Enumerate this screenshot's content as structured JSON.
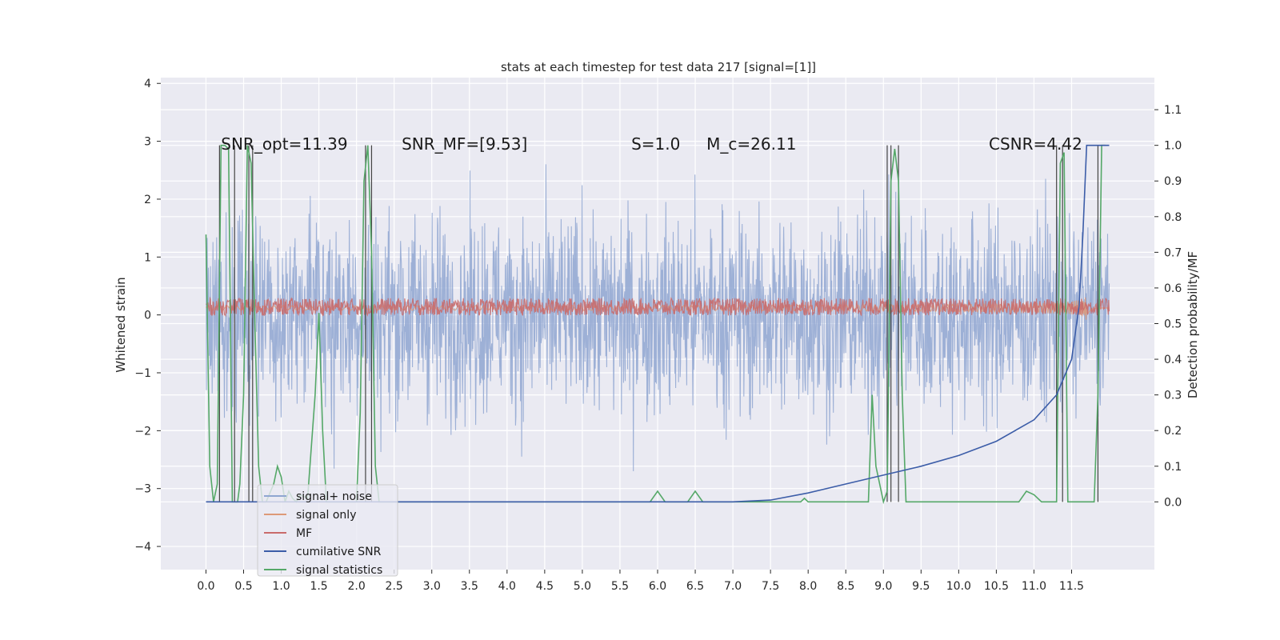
{
  "chart_data": {
    "type": "line",
    "title": "stats at each timestep for test data 217 [signal=[1]]",
    "xlabel": "",
    "ylabel": "Whitened strain",
    "ylabel_right": "Detection probability/MF",
    "xlim": [
      -0.6,
      12.6
    ],
    "ylim": [
      -4.4,
      4.1
    ],
    "ylim_right": [
      -0.19,
      1.19
    ],
    "x_ticks": [
      "0.0",
      "0.5",
      "1.0",
      "1.5",
      "2.0",
      "2.5",
      "3.0",
      "3.5",
      "4.0",
      "4.5",
      "5.0",
      "5.5",
      "6.0",
      "6.5",
      "7.0",
      "7.5",
      "8.0",
      "8.5",
      "9.0",
      "9.5",
      "10.0",
      "10.5",
      "11.0",
      "11.5"
    ],
    "y_ticks": [
      "4",
      "3",
      "2",
      "1",
      "0",
      "−1",
      "−2",
      "−3",
      "−4"
    ],
    "y_ticks_right": [
      "0.0",
      "0.1",
      "0.2",
      "0.3",
      "0.4",
      "0.5",
      "0.6",
      "0.7",
      "0.8",
      "0.9",
      "1.0",
      "1.1"
    ],
    "grid": true,
    "legend_position": "lower-left",
    "annotations": [
      {
        "text": "SNR_opt=11.39",
        "x": 0.2,
        "y": 2.95
      },
      {
        "text": "SNR_MF=[9.53]",
        "x": 2.6,
        "y": 2.95
      },
      {
        "text": "S=1.0",
        "x": 5.65,
        "y": 2.95
      },
      {
        "text": "M_c=26.11",
        "x": 6.65,
        "y": 2.95
      },
      {
        "text": "CSNR=4.42",
        "x": 10.4,
        "y": 2.95
      }
    ],
    "series": [
      {
        "name": "signal+ noise",
        "axis": "left",
        "color": "#8fa6d1",
        "description": "dense noisy strain between about -3 and 3"
      },
      {
        "name": "signal only",
        "axis": "left",
        "color": "#dd9a78",
        "description": "chirp near zero growing to about ±1 near t=11.7"
      },
      {
        "name": "MF",
        "axis": "left",
        "color": "#c96b6b",
        "description": "band between about 0 and 0.3"
      },
      {
        "name": "cumilative SNR",
        "axis": "right",
        "color": "#3c5da8",
        "x": [
          0.0,
          7.0,
          7.5,
          8.0,
          8.5,
          9.0,
          9.5,
          10.0,
          10.5,
          11.0,
          11.3,
          11.5,
          11.6,
          11.65,
          11.7,
          12.0
        ],
        "y": [
          0.0,
          0.0,
          0.005,
          0.025,
          0.05,
          0.075,
          0.1,
          0.13,
          0.17,
          0.23,
          0.3,
          0.4,
          0.55,
          0.75,
          1.0,
          1.0
        ]
      },
      {
        "name": "signal statistics",
        "axis": "right",
        "color": "#55a868",
        "x": [
          0.0,
          0.05,
          0.1,
          0.15,
          0.2,
          0.25,
          0.3,
          0.35,
          0.38,
          0.42,
          0.45,
          0.5,
          0.55,
          0.6,
          0.65,
          0.7,
          0.75,
          0.8,
          0.9,
          0.95,
          1.0,
          1.05,
          1.1,
          1.15,
          1.2,
          1.25,
          1.35,
          1.45,
          1.5,
          1.55,
          1.6,
          1.7,
          1.8,
          1.9,
          2.0,
          2.05,
          2.1,
          2.15,
          2.2,
          2.25,
          2.3,
          2.35,
          2.4,
          5.9,
          6.0,
          6.1,
          6.4,
          6.5,
          6.6,
          7.9,
          7.95,
          8.0,
          8.8,
          8.85,
          8.9,
          9.0,
          9.05,
          9.1,
          9.15,
          9.2,
          9.25,
          9.3,
          9.35,
          9.5,
          9.6,
          10.8,
          10.9,
          11.0,
          11.1,
          11.3,
          11.35,
          11.4,
          11.45,
          11.5,
          11.8,
          11.85,
          11.9,
          11.95
        ],
        "y": [
          0.75,
          0.1,
          0.0,
          0.05,
          1.0,
          1.0,
          0.99,
          0.0,
          0.0,
          0.0,
          0.05,
          0.3,
          1.0,
          0.95,
          0.5,
          0.1,
          0.0,
          0.0,
          0.05,
          0.1,
          0.07,
          0.0,
          0.03,
          0.01,
          0.0,
          0.02,
          0.01,
          0.3,
          0.53,
          0.2,
          0.0,
          0.0,
          0.0,
          0.0,
          0.0,
          0.25,
          0.9,
          1.0,
          0.7,
          0.1,
          0.0,
          0.0,
          0.0,
          0.0,
          0.03,
          0.0,
          0.0,
          0.03,
          0.0,
          0.0,
          0.01,
          0.0,
          0.0,
          0.3,
          0.1,
          0.0,
          0.03,
          0.9,
          0.99,
          0.9,
          0.3,
          0.0,
          0.0,
          0.0,
          0.0,
          0.0,
          0.03,
          0.02,
          0.0,
          0.0,
          0.95,
          0.98,
          0.0,
          0.0,
          0.0,
          0.3,
          1.0,
          1.0
        ]
      }
    ],
    "vertical_lines": [
      0.18,
      0.38,
      0.57,
      0.62,
      2.12,
      2.2,
      9.05,
      9.1,
      9.2,
      11.3,
      11.38,
      11.85
    ],
    "legend": [
      "signal+ noise",
      "signal only",
      "MF",
      "cumilative SNR",
      "signal statistics"
    ]
  }
}
